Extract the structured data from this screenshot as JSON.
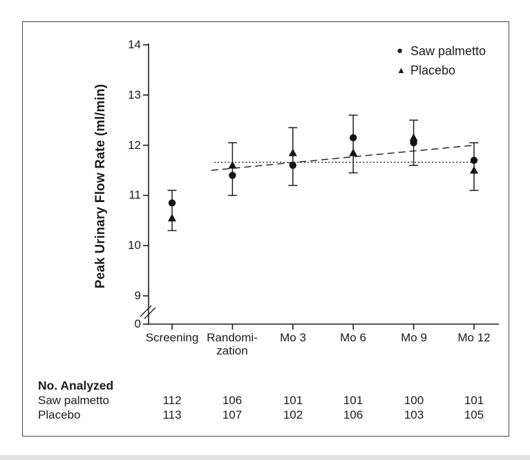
{
  "figure": {
    "legend": [
      {
        "glyph": "●",
        "label": "Saw palmetto",
        "marker": "circle"
      },
      {
        "glyph": "▲",
        "label": "Placebo",
        "marker": "triangle"
      }
    ]
  },
  "chart_data": {
    "type": "scatter",
    "ylabel": "Peak Urinary Flow Rate (ml/min)",
    "categories": [
      "Screening",
      "Randomi-\nzation",
      "Mo 3",
      "Mo 6",
      "Mo 9",
      "Mo 12"
    ],
    "y_axis_ticks": [
      "14",
      "13",
      "12",
      "11",
      "10",
      "9",
      "0"
    ],
    "ylim": [
      9,
      14
    ],
    "axis_break": "between 0 and 9",
    "grid": false,
    "legend_position": "top-right",
    "series": [
      {
        "name": "Saw palmetto",
        "marker": "circle",
        "values": [
          10.85,
          11.4,
          11.6,
          12.15,
          12.05,
          11.7
        ]
      },
      {
        "name": "Placebo",
        "marker": "triangle",
        "values": [
          10.55,
          11.6,
          11.85,
          11.85,
          12.15,
          11.5
        ]
      }
    ],
    "error_bars": {
      "upper": [
        11.1,
        12.05,
        12.35,
        12.6,
        12.5,
        12.05
      ],
      "lower": [
        10.3,
        11.0,
        11.2,
        11.45,
        11.6,
        11.1
      ]
    },
    "trend_lines": [
      {
        "group": "Saw palmetto",
        "style": "dashed",
        "x_start": 0.65,
        "x_end": 5.0,
        "y_start": 11.5,
        "y_end": 12.0
      },
      {
        "group": "Placebo",
        "style": "dotted",
        "x_start": 0.7,
        "x_end": 5.0,
        "y_start": 11.66,
        "y_end": 11.66
      }
    ]
  },
  "table": {
    "title": "No. Analyzed",
    "rows": [
      {
        "label": "Saw palmetto",
        "values": [
          "112",
          "106",
          "101",
          "101",
          "100",
          "101"
        ]
      },
      {
        "label": "Placebo",
        "values": [
          "113",
          "107",
          "102",
          "106",
          "103",
          "105"
        ]
      }
    ]
  }
}
